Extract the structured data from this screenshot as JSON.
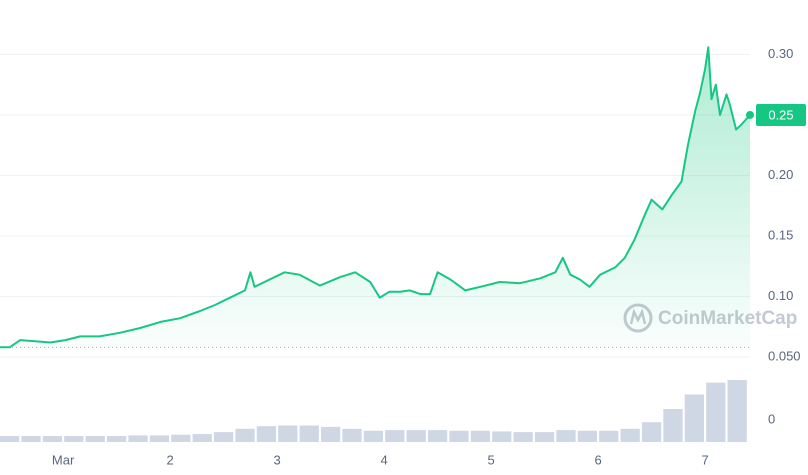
{
  "chart_data": {
    "type": "line",
    "color": "#16c784",
    "x": [
      0.41,
      0.5,
      0.6,
      0.74,
      0.88,
      1.02,
      1.16,
      1.34,
      1.53,
      1.72,
      1.91,
      2.09,
      2.28,
      2.42,
      2.56,
      2.7,
      2.75,
      2.79,
      2.93,
      3.07,
      3.21,
      3.4,
      3.59,
      3.73,
      3.87,
      3.96,
      4.05,
      4.15,
      4.24,
      4.34,
      4.43,
      4.5,
      4.62,
      4.76,
      4.9,
      5.08,
      5.27,
      5.46,
      5.6,
      5.67,
      5.74,
      5.83,
      5.92,
      6.02,
      6.16,
      6.25,
      6.34,
      6.44,
      6.5,
      6.6,
      6.69,
      6.78,
      6.84,
      6.91,
      6.95,
      7.0,
      7.03,
      7.06,
      7.1,
      7.14,
      7.2,
      7.23,
      7.29,
      7.34,
      7.42
    ],
    "values": [
      0.058,
      0.058,
      0.064,
      0.063,
      0.062,
      0.064,
      0.067,
      0.067,
      0.07,
      0.074,
      0.079,
      0.082,
      0.088,
      0.093,
      0.099,
      0.105,
      0.12,
      0.108,
      0.114,
      0.12,
      0.118,
      0.109,
      0.116,
      0.12,
      0.112,
      0.099,
      0.104,
      0.104,
      0.105,
      0.102,
      0.102,
      0.12,
      0.114,
      0.105,
      0.108,
      0.112,
      0.111,
      0.115,
      0.12,
      0.132,
      0.118,
      0.114,
      0.108,
      0.118,
      0.124,
      0.132,
      0.147,
      0.168,
      0.18,
      0.172,
      0.184,
      0.195,
      0.225,
      0.254,
      0.267,
      0.288,
      0.306,
      0.263,
      0.275,
      0.25,
      0.267,
      0.259,
      0.238,
      0.242,
      0.25
    ],
    "xlim": [
      0.41,
      7.42
    ],
    "xticks": [
      {
        "value": 1,
        "label": "Mar"
      },
      2,
      3,
      4,
      5,
      6,
      7
    ],
    "ylim": [
      0.05,
      0.345
    ],
    "yticks": [
      {
        "value": 0.3,
        "label": "0.30"
      },
      0.25,
      {
        "value": 0.2,
        "label": "0.20"
      },
      0.15,
      {
        "value": 0.1,
        "label": "0.10"
      },
      {
        "value": 0.05,
        "label": "0.050"
      }
    ],
    "grid": true,
    "current_price": 0.25,
    "watermark": "CoinMarketCap",
    "volume": {
      "type": "bar",
      "color": "#cfd6e4",
      "x": [
        0.5,
        0.7,
        0.9,
        1.1,
        1.3,
        1.5,
        1.7,
        1.9,
        2.1,
        2.3,
        2.5,
        2.7,
        2.9,
        3.1,
        3.3,
        3.5,
        3.7,
        3.9,
        4.1,
        4.3,
        4.5,
        4.7,
        4.9,
        5.1,
        5.3,
        5.5,
        5.7,
        5.9,
        6.1,
        6.3,
        6.5,
        6.7,
        6.9,
        7.1,
        7.3
      ],
      "values": [
        0.09,
        0.09,
        0.09,
        0.09,
        0.09,
        0.09,
        0.1,
        0.1,
        0.11,
        0.12,
        0.15,
        0.2,
        0.24,
        0.25,
        0.25,
        0.23,
        0.2,
        0.17,
        0.18,
        0.18,
        0.18,
        0.17,
        0.17,
        0.16,
        0.15,
        0.15,
        0.18,
        0.17,
        0.17,
        0.2,
        0.3,
        0.5,
        0.72,
        0.9,
        0.94
      ],
      "ylim": [
        0,
        1
      ],
      "yticks": [
        0
      ]
    }
  }
}
